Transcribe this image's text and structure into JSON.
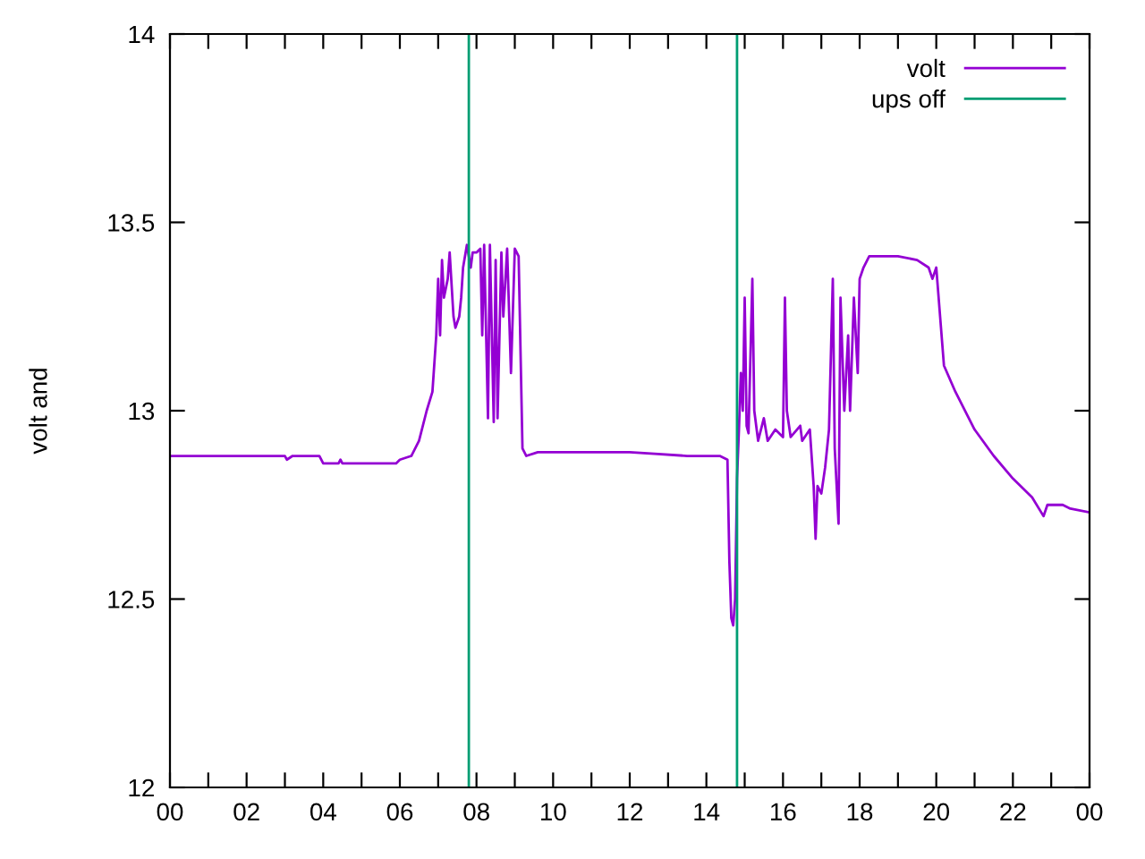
{
  "chart_data": {
    "type": "line",
    "ylabel": "volt and",
    "xlim": [
      0,
      24
    ],
    "ylim": [
      12,
      14
    ],
    "xticks": [
      {
        "value": 0,
        "label": "00"
      },
      {
        "value": 1,
        "label": null
      },
      {
        "value": 2,
        "label": "02"
      },
      {
        "value": 3,
        "label": null
      },
      {
        "value": 4,
        "label": "04"
      },
      {
        "value": 5,
        "label": null
      },
      {
        "value": 6,
        "label": "06"
      },
      {
        "value": 7,
        "label": null
      },
      {
        "value": 8,
        "label": "08"
      },
      {
        "value": 9,
        "label": null
      },
      {
        "value": 10,
        "label": "10"
      },
      {
        "value": 11,
        "label": null
      },
      {
        "value": 12,
        "label": "12"
      },
      {
        "value": 13,
        "label": null
      },
      {
        "value": 14,
        "label": "14"
      },
      {
        "value": 15,
        "label": null
      },
      {
        "value": 16,
        "label": "16"
      },
      {
        "value": 17,
        "label": null
      },
      {
        "value": 18,
        "label": "18"
      },
      {
        "value": 19,
        "label": null
      },
      {
        "value": 20,
        "label": "20"
      },
      {
        "value": 21,
        "label": null
      },
      {
        "value": 22,
        "label": "22"
      },
      {
        "value": 23,
        "label": null
      },
      {
        "value": 24,
        "label": "00"
      }
    ],
    "yticks": [
      12,
      12.5,
      13,
      13.5,
      14
    ],
    "grid": false,
    "legend": "top right",
    "marker": "none",
    "line_style": "solid",
    "series": [
      {
        "name": "volt",
        "color": "#9400d3",
        "x": [
          0,
          3.0,
          3.05,
          3.2,
          3.9,
          4.0,
          4.4,
          4.45,
          4.5,
          5.9,
          6.0,
          6.3,
          6.5,
          6.7,
          6.85,
          6.95,
          7.0,
          7.05,
          7.1,
          7.15,
          7.25,
          7.3,
          7.4,
          7.45,
          7.55,
          7.6,
          7.65,
          7.75,
          7.85,
          7.9,
          8.0,
          8.1,
          8.15,
          8.2,
          8.3,
          8.35,
          8.45,
          8.5,
          8.55,
          8.65,
          8.7,
          8.8,
          8.9,
          9.0,
          9.1,
          9.2,
          9.3,
          9.6,
          10.5,
          12,
          13.5,
          14.35,
          14.55,
          14.6,
          14.65,
          14.7,
          14.75,
          14.8,
          14.85,
          14.9,
          14.95,
          15.0,
          15.05,
          15.1,
          15.2,
          15.25,
          15.35,
          15.5,
          15.6,
          15.8,
          16.0,
          16.05,
          16.1,
          16.2,
          16.45,
          16.5,
          16.7,
          16.8,
          16.85,
          16.9,
          17.0,
          17.1,
          17.2,
          17.3,
          17.35,
          17.45,
          17.5,
          17.6,
          17.7,
          17.75,
          17.85,
          17.95,
          18.0,
          18.1,
          18.25,
          19.0,
          19.5,
          19.8,
          19.9,
          20.0,
          20.1,
          20.2,
          20.5,
          21.0,
          21.5,
          22.0,
          22.5,
          22.8,
          22.9,
          23.3,
          23.5,
          24
        ],
        "values": [
          12.88,
          12.88,
          12.87,
          12.88,
          12.88,
          12.86,
          12.86,
          12.87,
          12.86,
          12.86,
          12.87,
          12.88,
          12.92,
          13.0,
          13.05,
          13.2,
          13.35,
          13.2,
          13.4,
          13.3,
          13.35,
          13.42,
          13.25,
          13.22,
          13.25,
          13.3,
          13.38,
          13.44,
          13.38,
          13.42,
          13.42,
          13.43,
          13.2,
          13.44,
          12.98,
          13.44,
          12.97,
          13.4,
          12.98,
          13.42,
          13.25,
          13.43,
          13.1,
          13.43,
          13.41,
          12.9,
          12.88,
          12.89,
          12.89,
          12.89,
          12.88,
          12.88,
          12.87,
          12.6,
          12.45,
          12.43,
          12.5,
          12.82,
          12.95,
          13.1,
          13.0,
          13.3,
          12.96,
          12.94,
          13.35,
          13.0,
          12.92,
          12.98,
          12.92,
          12.95,
          12.93,
          13.3,
          13.0,
          12.93,
          12.96,
          12.92,
          12.95,
          12.8,
          12.66,
          12.8,
          12.78,
          12.85,
          12.95,
          13.35,
          12.9,
          12.7,
          13.3,
          13.0,
          13.2,
          13.0,
          13.3,
          13.1,
          13.35,
          13.38,
          13.41,
          13.41,
          13.4,
          13.38,
          13.35,
          13.38,
          13.25,
          13.12,
          13.05,
          12.95,
          12.88,
          12.82,
          12.77,
          12.72,
          12.75,
          12.75,
          12.74,
          12.73
        ]
      },
      {
        "name": "ups off",
        "color": "#009e73",
        "x": [
          7.8,
          7.8,
          7.85,
          14.8,
          14.8
        ],
        "values": [
          12,
          14,
          null,
          12,
          14
        ]
      }
    ]
  }
}
